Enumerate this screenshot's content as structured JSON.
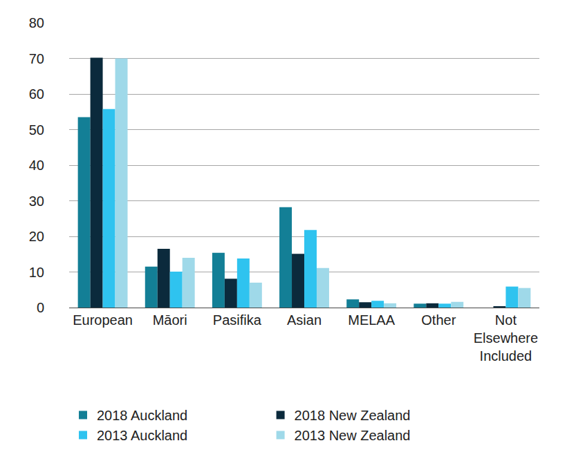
{
  "chart_data": {
    "type": "bar",
    "categories": [
      "European",
      "Māori",
      "Pasifika",
      "Asian",
      "MELAA",
      "Other",
      "Not Elsewhere Included"
    ],
    "series": [
      {
        "name": "2018 Auckland",
        "color": "#137f96",
        "values": [
          53.5,
          11.5,
          15.4,
          28.2,
          2.3,
          1.1,
          0
        ]
      },
      {
        "name": "2018 New Zealand",
        "color": "#0b2a3c",
        "values": [
          70.2,
          16.5,
          8.1,
          15.1,
          1.5,
          1.2,
          0.2
        ]
      },
      {
        "name": "2013 Auckland",
        "color": "#2fc3ef",
        "values": [
          55.8,
          10.1,
          13.8,
          21.8,
          1.9,
          1.1,
          5.9
        ]
      },
      {
        "name": "2013 New Zealand",
        "color": "#9fd9e9",
        "values": [
          70.0,
          14.0,
          7.0,
          11.1,
          1.2,
          1.6,
          5.5
        ]
      }
    ],
    "ylim": [
      0,
      80
    ],
    "yticks": [
      0,
      10,
      20,
      30,
      40,
      50,
      60,
      70,
      80
    ],
    "grid": true,
    "legend": "bottom"
  }
}
